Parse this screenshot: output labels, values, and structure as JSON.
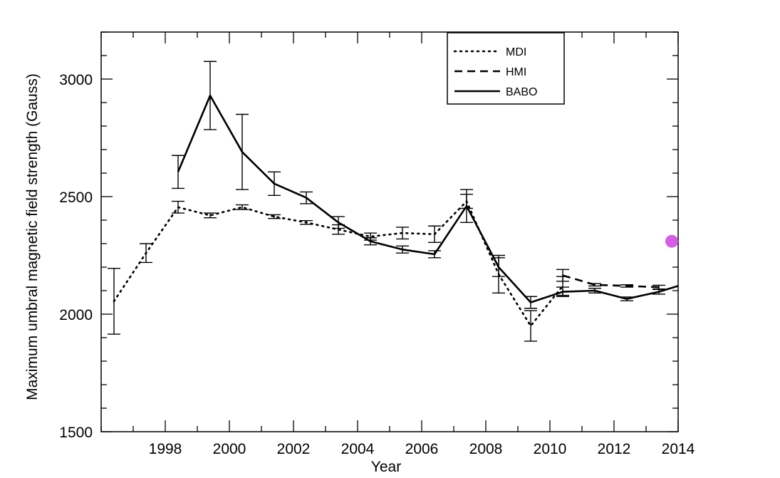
{
  "chart_data": {
    "type": "line",
    "xlabel": "Year",
    "ylabel": "Maximum umbral magnetic field strength (Gauss)",
    "xlim": [
      1996,
      2014
    ],
    "ylim": [
      1500,
      3200
    ],
    "xticks": [
      1998,
      2000,
      2002,
      2004,
      2006,
      2008,
      2010,
      2012,
      2014
    ],
    "yticks": [
      1500,
      2000,
      2500,
      3000
    ],
    "xtick_labels": [
      "1998",
      "2000",
      "2002",
      "2004",
      "2006",
      "2008",
      "2010",
      "2012",
      "2014"
    ],
    "ytick_labels": [
      "1500",
      "2000",
      "2500",
      "3000"
    ],
    "x_minor_step": 1,
    "y_minor_step": 100,
    "grid": false,
    "legend_position": "top-right",
    "series": [
      {
        "name": "MDI",
        "style": "dotted",
        "points": [
          {
            "x": 1996.4,
            "y": 2055,
            "err": 140
          },
          {
            "x": 1997.4,
            "y": 2260,
            "err": 40
          },
          {
            "x": 1998.4,
            "y": 2455,
            "err": 25
          },
          {
            "x": 1999.4,
            "y": 2420,
            "err": 10
          },
          {
            "x": 2000.4,
            "y": 2455,
            "err": 10
          },
          {
            "x": 2001.4,
            "y": 2415,
            "err": 8
          },
          {
            "x": 2002.4,
            "y": 2390,
            "err": 8
          },
          {
            "x": 2003.4,
            "y": 2360,
            "err": 20
          },
          {
            "x": 2004.4,
            "y": 2330,
            "err": 15
          },
          {
            "x": 2005.4,
            "y": 2345,
            "err": 25
          },
          {
            "x": 2006.4,
            "y": 2340,
            "err": 35
          },
          {
            "x": 2007.4,
            "y": 2480,
            "err": 30
          },
          {
            "x": 2008.4,
            "y": 2170,
            "err": 80
          },
          {
            "x": 2009.4,
            "y": 1950,
            "err": 65
          },
          {
            "x": 2010.4,
            "y": 2120,
            "err": 40
          }
        ]
      },
      {
        "name": "HMI",
        "style": "dashed",
        "points": [
          {
            "x": 2010.4,
            "y": 2165,
            "err": 25
          },
          {
            "x": 2011.4,
            "y": 2125,
            "err": 5
          },
          {
            "x": 2012.4,
            "y": 2120,
            "err": 5
          },
          {
            "x": 2013.4,
            "y": 2115,
            "err": 8
          }
        ]
      },
      {
        "name": "BABO",
        "style": "solid",
        "points": [
          {
            "x": 1998.4,
            "y": 2605,
            "err": 70
          },
          {
            "x": 1999.4,
            "y": 2930,
            "err": 145
          },
          {
            "x": 2000.4,
            "y": 2690,
            "err": 160
          },
          {
            "x": 2001.4,
            "y": 2555,
            "err": 50
          },
          {
            "x": 2002.4,
            "y": 2495,
            "err": 25
          },
          {
            "x": 2003.4,
            "y": 2390,
            "err": 25
          },
          {
            "x": 2004.4,
            "y": 2310,
            "err": 15
          },
          {
            "x": 2005.4,
            "y": 2275,
            "err": 15
          },
          {
            "x": 2006.4,
            "y": 2255,
            "err": 15
          },
          {
            "x": 2007.4,
            "y": 2460,
            "err": 70
          },
          {
            "x": 2008.4,
            "y": 2200,
            "err": 40
          },
          {
            "x": 2009.4,
            "y": 2050,
            "err": 25
          },
          {
            "x": 2010.4,
            "y": 2095,
            "err": 20
          },
          {
            "x": 2011.4,
            "y": 2100,
            "err": 10
          },
          {
            "x": 2012.4,
            "y": 2065,
            "err": 8
          },
          {
            "x": 2013.4,
            "y": 2095,
            "err": 10
          },
          {
            "x": 2014.0,
            "y": 2120,
            "err": 0
          }
        ]
      }
    ],
    "highlight_point": {
      "x": 2013.8,
      "y": 2310,
      "color": "#d65ee6"
    }
  }
}
